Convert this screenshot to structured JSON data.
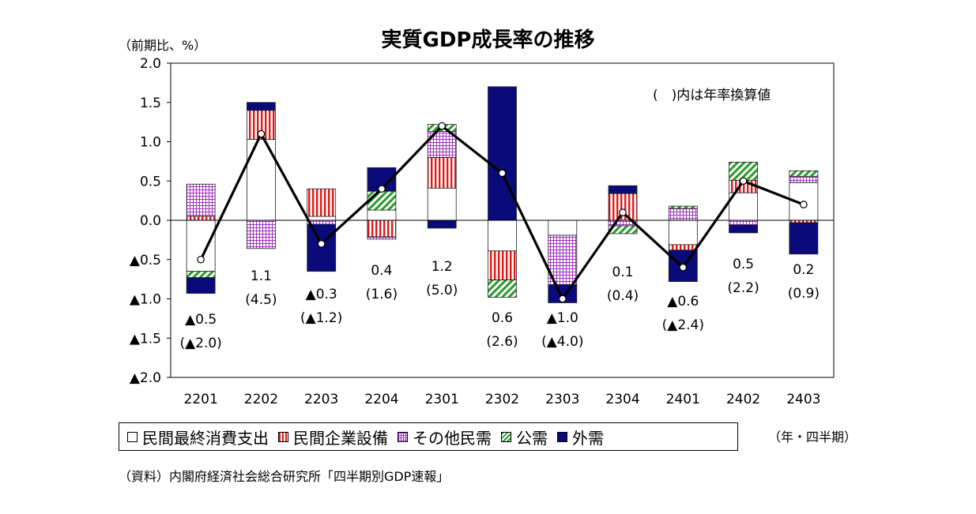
{
  "title": "実質GDP成長率の推移",
  "unit_label": "（前期比、%）",
  "note": "(　)内は年率換算値",
  "period_label": "（年・四半期）",
  "source": "（資料）内閣府経済社会総合研究所「四半期別GDP速報」",
  "colors": {
    "consumption": "#ffffff",
    "capex": "#e01818",
    "other_private": "#a030c0",
    "public": "#2a9a2a",
    "external": "#0a0a7a",
    "line": "#000000"
  },
  "chart_data": {
    "type": "bar",
    "stacked": true,
    "categories": [
      "2201",
      "2202",
      "2203",
      "2204",
      "2301",
      "2302",
      "2303",
      "2304",
      "2401",
      "2402",
      "2403"
    ],
    "ylim": [
      -2.0,
      2.0
    ],
    "yticks": [
      2.0,
      1.5,
      1.0,
      0.5,
      0.0,
      -0.5,
      -1.0,
      -1.5,
      -2.0
    ],
    "ytick_labels": [
      "2.0",
      "1.5",
      "1.0",
      "0.5",
      "0.0",
      "▲0.5",
      "▲1.0",
      "▲1.5",
      "▲2.0"
    ],
    "grid": false,
    "legend_position": "bottom",
    "series": [
      {
        "name": "民間最終消費支出",
        "key": "consumption",
        "values": [
          -0.65,
          1.03,
          0.05,
          0.13,
          0.41,
          -0.39,
          -0.19,
          0.0,
          -0.31,
          0.35,
          0.48
        ]
      },
      {
        "name": "民間企業設備",
        "key": "capex",
        "values": [
          0.05,
          0.37,
          0.35,
          -0.21,
          0.39,
          -0.37,
          0.0,
          0.34,
          -0.07,
          0.16,
          -0.03
        ]
      },
      {
        "name": "その他民需",
        "key": "other_private",
        "values": [
          0.41,
          -0.36,
          -0.05,
          -0.03,
          0.33,
          0.0,
          -0.63,
          -0.07,
          0.15,
          -0.06,
          0.08
        ]
      },
      {
        "name": "公需",
        "key": "public",
        "values": [
          -0.08,
          0.0,
          0.0,
          0.24,
          0.09,
          -0.22,
          0.0,
          -0.1,
          0.03,
          0.23,
          0.07
        ]
      },
      {
        "name": "外需",
        "key": "external",
        "values": [
          -0.2,
          0.1,
          -0.6,
          0.3,
          -0.1,
          1.7,
          -0.23,
          0.1,
          -0.4,
          -0.1,
          -0.4
        ]
      }
    ],
    "line": {
      "values": [
        -0.5,
        1.1,
        -0.3,
        0.4,
        1.2,
        0.6,
        -1.0,
        0.1,
        -0.6,
        0.5,
        0.2
      ]
    },
    "annotations": [
      {
        "qoq": "▲0.5",
        "annual": "(▲2.0)"
      },
      {
        "qoq": "1.1",
        "annual": "(4.5)"
      },
      {
        "qoq": "▲0.3",
        "annual": "(▲1.2)"
      },
      {
        "qoq": "0.4",
        "annual": "(1.6)"
      },
      {
        "qoq": "1.2",
        "annual": "(5.0)"
      },
      {
        "qoq": "0.6",
        "annual": "(2.6)"
      },
      {
        "qoq": "▲1.0",
        "annual": "(▲4.0)"
      },
      {
        "qoq": "0.1",
        "annual": "(0.4)"
      },
      {
        "qoq": "▲0.6",
        "annual": "(▲2.4)"
      },
      {
        "qoq": "0.5",
        "annual": "(2.2)"
      },
      {
        "qoq": "0.2",
        "annual": "(0.9)"
      }
    ]
  }
}
